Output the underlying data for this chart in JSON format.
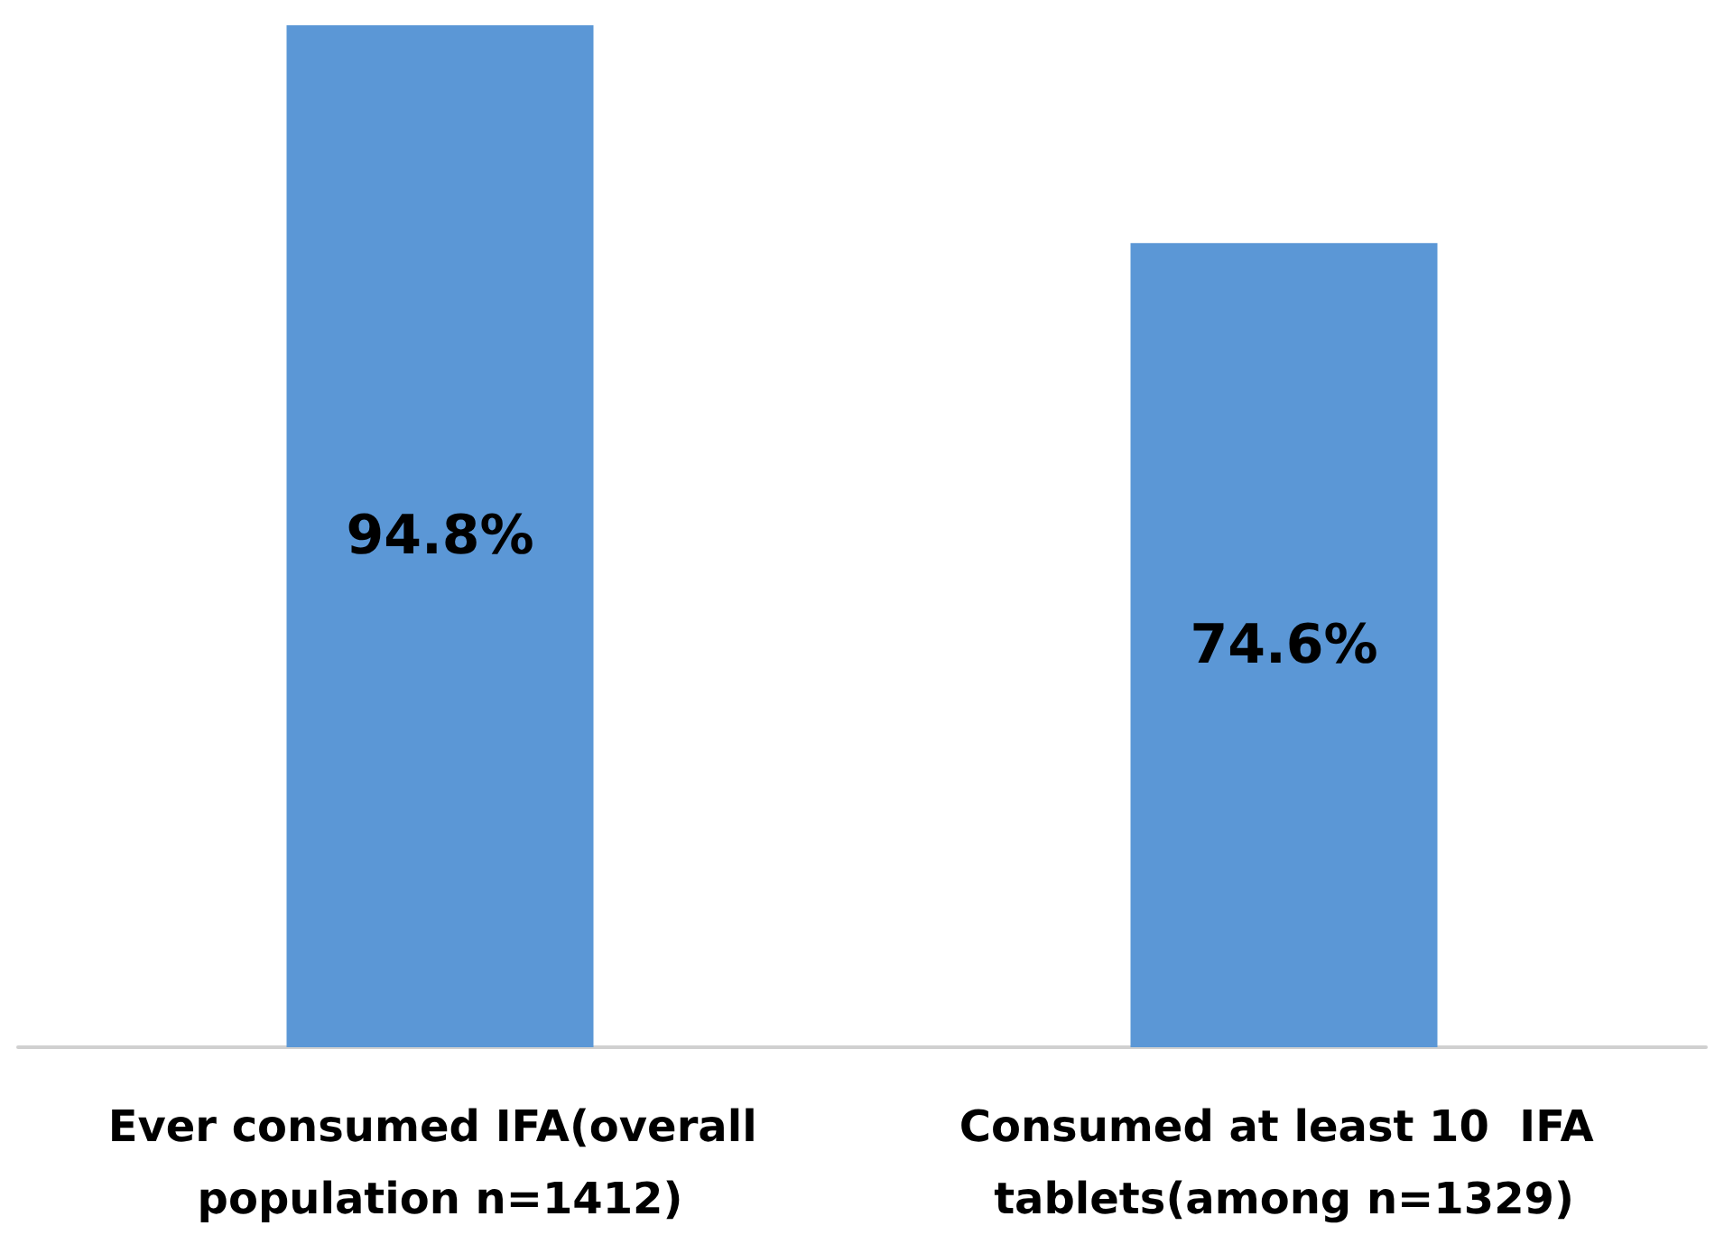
{
  "chart_data": {
    "type": "bar",
    "categories": [
      "Ever consumed IFA(overall population n=1412)",
      "Consumed at least 10  IFA tablets(among n=1329)"
    ],
    "values": [
      94.8,
      74.6
    ],
    "color": "#5b97d6",
    "value_labels": [
      "94.8%",
      "74.6%"
    ]
  }
}
